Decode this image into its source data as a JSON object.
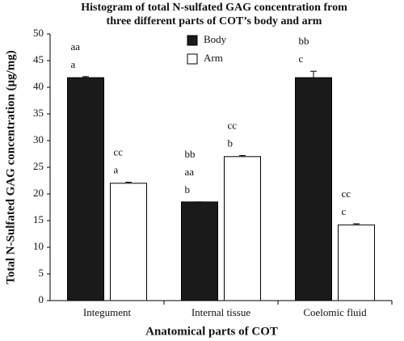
{
  "chart_data": {
    "type": "bar",
    "title_lines": [
      "Histogram of total N-sulfated GAG concentration from",
      "three different parts of COT’s body and arm"
    ],
    "x_label": "Anatomical parts of COT",
    "y_label": "Total N-Sulfated GAG concentration (μg/mg)",
    "categories": [
      "Integument",
      "Internal tissue",
      "Coelomic fluid"
    ],
    "series": [
      {
        "name": "Body",
        "color": "#1a1a1a",
        "values": [
          41.8,
          18.5,
          41.8
        ],
        "errors": [
          0.2,
          0,
          1.2
        ],
        "annotations": [
          [
            "aa",
            "a"
          ],
          [
            "bb",
            "aa",
            "b"
          ],
          [
            "bb",
            "c"
          ]
        ]
      },
      {
        "name": "Arm",
        "color": "#ffffff",
        "values": [
          22,
          27,
          14.2
        ],
        "errors": [
          0.2,
          0.2,
          0.2
        ],
        "annotations": [
          [
            "cc",
            "a"
          ],
          [
            "cc",
            "b"
          ],
          [
            "cc",
            "c"
          ]
        ]
      }
    ],
    "ylim": [
      0,
      50
    ],
    "yticks": [
      0,
      5,
      10,
      15,
      20,
      25,
      30,
      35,
      40,
      45,
      50
    ],
    "grid": false,
    "legend": "top"
  }
}
